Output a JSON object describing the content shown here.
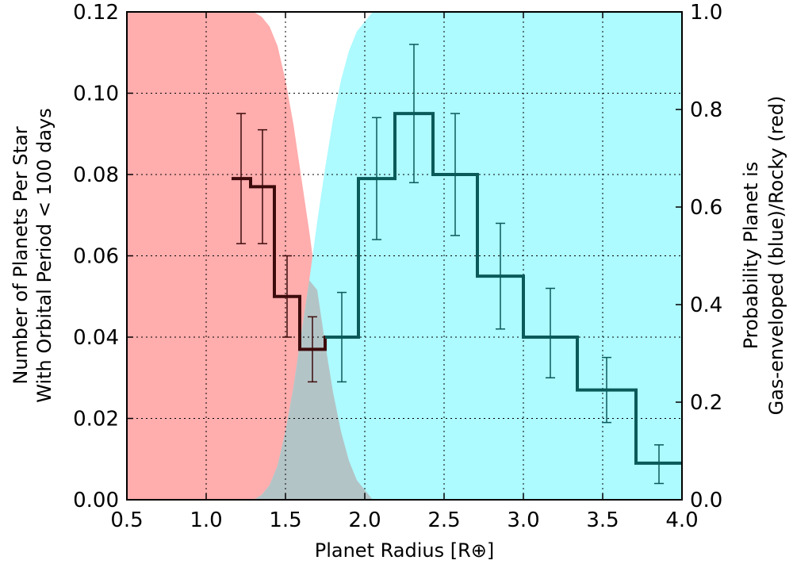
{
  "chart_data": {
    "type": "line",
    "xlabel": "Planet Radius [R⊕]",
    "ylabel_left_line1": "Number of Planets Per Star",
    "ylabel_left_line2": "With Orbital Period < 100 days",
    "ylabel_right_line1": "Probability Planet is",
    "ylabel_right_line2": "Gas-enveloped (blue)/Rocky (red)",
    "xlim": [
      0.5,
      4.0
    ],
    "ylim_left": [
      0.0,
      0.12
    ],
    "ylim_right": [
      0.0,
      1.0
    ],
    "grid": true,
    "x_ticks": [
      "0.5",
      "1.0",
      "1.5",
      "2.0",
      "2.5",
      "3.0",
      "3.5",
      "4.0"
    ],
    "y_ticks_left": [
      "0.00",
      "0.02",
      "0.04",
      "0.06",
      "0.08",
      "0.10",
      "0.12"
    ],
    "y_ticks_right": [
      "0.0",
      "0.2",
      "0.4",
      "0.6",
      "0.8",
      "1.0"
    ],
    "histogram": {
      "bin_edges": [
        1.16,
        1.28,
        1.43,
        1.59,
        1.75,
        1.96,
        2.19,
        2.43,
        2.71,
        3.0,
        3.34,
        3.71,
        4.0
      ],
      "values": [
        0.079,
        0.077,
        0.05,
        0.037,
        0.04,
        0.079,
        0.095,
        0.08,
        0.055,
        0.04,
        0.027,
        0.009
      ],
      "err_low": [
        0.063,
        0.063,
        0.04,
        0.029,
        0.029,
        0.064,
        0.078,
        0.065,
        0.042,
        0.03,
        0.019,
        0.004
      ],
      "err_high": [
        0.095,
        0.091,
        0.06,
        0.045,
        0.051,
        0.094,
        0.112,
        0.095,
        0.068,
        0.052,
        0.035,
        0.0135
      ],
      "color": "#0b5a5a",
      "rocky_color": "#3d0b0b",
      "rocky_bins": 4
    },
    "probability_curves": {
      "x": [
        0.5,
        1.3,
        1.35,
        1.4,
        1.45,
        1.5,
        1.55,
        1.6,
        1.65,
        1.7,
        1.75,
        1.8,
        1.85,
        1.9,
        1.95,
        2.0,
        2.05,
        2.1,
        2.15,
        2.2,
        2.25,
        2.3,
        4.0
      ],
      "rocky": [
        1.0,
        1.0,
        0.99,
        0.97,
        0.93,
        0.86,
        0.77,
        0.66,
        0.55,
        0.43,
        0.32,
        0.22,
        0.14,
        0.08,
        0.04,
        0.02,
        0.0,
        0.0,
        0.0,
        0.0,
        0.0,
        0.0,
        0.0
      ],
      "gas": [
        0.0,
        0.0,
        0.01,
        0.03,
        0.07,
        0.14,
        0.23,
        0.34,
        0.45,
        0.57,
        0.68,
        0.78,
        0.86,
        0.92,
        0.96,
        0.98,
        1.0,
        1.0,
        1.0,
        1.0,
        1.0,
        1.0,
        1.0
      ],
      "rocky_color": "#ffadad",
      "gas_color": "#adfaff",
      "overlap_color": "#b3c4c6"
    }
  }
}
